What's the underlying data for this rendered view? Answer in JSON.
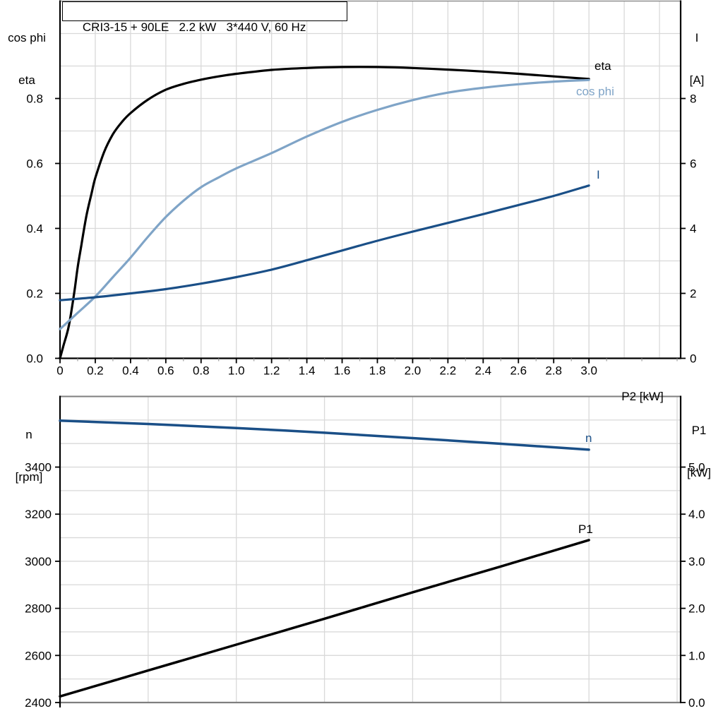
{
  "title_box": {
    "text": "CRI3-15 + 90LE   2.2 kW   3*440 V, 60 Hz",
    "model": "CRI3-15 + 90LE",
    "rated_power": "2.2 kW",
    "supply": "3*440 V, 60 Hz"
  },
  "colors": {
    "black": "#000000",
    "dark_blue": "#1a4f87",
    "light_blue": "#7fa4c7",
    "grid": "#d9d9d9",
    "frame": "#7f7f7f",
    "minor_tick": "#999999",
    "background": "#ffffff"
  },
  "chart_data": [
    {
      "type": "line",
      "title": "CRI3-15 + 90LE 2.2 kW 3*440 V, 60 Hz",
      "xlabel": "P2 [kW]",
      "x_axis": {
        "label": "P2 [kW]",
        "range": [
          0,
          3.52
        ],
        "grid_step": 0.2,
        "minor_step": 0.1,
        "ticks": [
          {
            "v": 0,
            "label": "0"
          },
          {
            "v": 0.2,
            "label": "0.2"
          },
          {
            "v": 0.4,
            "label": "0.4"
          },
          {
            "v": 0.6,
            "label": "0.6"
          },
          {
            "v": 0.8,
            "label": "0.8"
          },
          {
            "v": 1.0,
            "label": "1.0"
          },
          {
            "v": 1.2,
            "label": "1.2"
          },
          {
            "v": 1.4,
            "label": "1.4"
          },
          {
            "v": 1.6,
            "label": "1.6"
          },
          {
            "v": 1.8,
            "label": "1.8"
          },
          {
            "v": 2.0,
            "label": "2.0"
          },
          {
            "v": 2.2,
            "label": "2.2"
          },
          {
            "v": 2.4,
            "label": "2.4"
          },
          {
            "v": 2.6,
            "label": "2.6"
          },
          {
            "v": 2.8,
            "label": "2.8"
          },
          {
            "v": 3.0,
            "label": "3.0"
          }
        ]
      },
      "y_left": {
        "title_lines": [
          "cos phi",
          "eta"
        ],
        "range": [
          0,
          1.1
        ],
        "grid_step": 0.1,
        "ticks": [
          {
            "v": 0.0,
            "label": "0.0"
          },
          {
            "v": 0.2,
            "label": "0.2"
          },
          {
            "v": 0.4,
            "label": "0.4"
          },
          {
            "v": 0.6,
            "label": "0.6"
          },
          {
            "v": 0.8,
            "label": "0.8"
          }
        ]
      },
      "y_right": {
        "title_lines": [
          "I",
          "[A]"
        ],
        "range": [
          0,
          11
        ],
        "ticks": [
          {
            "v": 0,
            "label": "0"
          },
          {
            "v": 2,
            "label": "2"
          },
          {
            "v": 4,
            "label": "4"
          },
          {
            "v": 6,
            "label": "6"
          },
          {
            "v": 8,
            "label": "8"
          }
        ]
      },
      "series": [
        {
          "name": "eta",
          "axis": "left",
          "color": "black",
          "points": [
            [
              0,
              0
            ],
            [
              0.02,
              0.04
            ],
            [
              0.05,
              0.1
            ],
            [
              0.08,
              0.2
            ],
            [
              0.1,
              0.28
            ],
            [
              0.12,
              0.345
            ],
            [
              0.15,
              0.44
            ],
            [
              0.18,
              0.51
            ],
            [
              0.2,
              0.555
            ],
            [
              0.25,
              0.635
            ],
            [
              0.3,
              0.69
            ],
            [
              0.35,
              0.727
            ],
            [
              0.4,
              0.755
            ],
            [
              0.5,
              0.797
            ],
            [
              0.6,
              0.827
            ],
            [
              0.7,
              0.845
            ],
            [
              0.8,
              0.858
            ],
            [
              0.9,
              0.868
            ],
            [
              1.0,
              0.876
            ],
            [
              1.2,
              0.888
            ],
            [
              1.4,
              0.894
            ],
            [
              1.6,
              0.897
            ],
            [
              1.8,
              0.897
            ],
            [
              2.0,
              0.894
            ],
            [
              2.2,
              0.889
            ],
            [
              2.4,
              0.883
            ],
            [
              2.6,
              0.876
            ],
            [
              2.8,
              0.868
            ],
            [
              3.0,
              0.86
            ]
          ]
        },
        {
          "name": "cos phi",
          "axis": "left",
          "color": "light_blue",
          "points": [
            [
              0,
              0.09
            ],
            [
              0.1,
              0.14
            ],
            [
              0.2,
              0.19
            ],
            [
              0.3,
              0.25
            ],
            [
              0.4,
              0.31
            ],
            [
              0.5,
              0.375
            ],
            [
              0.6,
              0.435
            ],
            [
              0.7,
              0.485
            ],
            [
              0.8,
              0.527
            ],
            [
              0.9,
              0.557
            ],
            [
              1.0,
              0.585
            ],
            [
              1.2,
              0.632
            ],
            [
              1.4,
              0.683
            ],
            [
              1.6,
              0.728
            ],
            [
              1.8,
              0.765
            ],
            [
              2.0,
              0.795
            ],
            [
              2.2,
              0.818
            ],
            [
              2.4,
              0.833
            ],
            [
              2.6,
              0.844
            ],
            [
              2.8,
              0.852
            ],
            [
              3.0,
              0.857
            ]
          ]
        },
        {
          "name": "I",
          "axis": "right",
          "color": "dark_blue",
          "points": [
            [
              0,
              1.79
            ],
            [
              0.2,
              1.88
            ],
            [
              0.4,
              2.0
            ],
            [
              0.6,
              2.13
            ],
            [
              0.8,
              2.3
            ],
            [
              1.0,
              2.5
            ],
            [
              1.2,
              2.73
            ],
            [
              1.4,
              3.02
            ],
            [
              1.6,
              3.32
            ],
            [
              1.8,
              3.62
            ],
            [
              2.0,
              3.9
            ],
            [
              2.2,
              4.17
            ],
            [
              2.4,
              4.44
            ],
            [
              2.6,
              4.72
            ],
            [
              2.8,
              5.0
            ],
            [
              3.0,
              5.32
            ]
          ]
        }
      ]
    },
    {
      "type": "line",
      "xlabel": "",
      "x_axis": {
        "label": "",
        "range": [
          0,
          3.52
        ],
        "grid_step": 0.5,
        "minor_step": null,
        "ticks": []
      },
      "y_left": {
        "title_lines": [
          "n",
          "[rpm]"
        ],
        "range": [
          2400,
          3700
        ],
        "grid_step": 100,
        "ticks": [
          {
            "v": 2400,
            "label": "2400"
          },
          {
            "v": 2600,
            "label": "2600"
          },
          {
            "v": 2800,
            "label": "2800"
          },
          {
            "v": 3000,
            "label": "3000"
          },
          {
            "v": 3200,
            "label": "3200"
          },
          {
            "v": 3400,
            "label": "3400"
          }
        ]
      },
      "y_right": {
        "title_lines": [
          "P1",
          "[kW]"
        ],
        "range": [
          0,
          6.5
        ],
        "ticks": [
          {
            "v": 0,
            "label": "0.0"
          },
          {
            "v": 1,
            "label": "1.0"
          },
          {
            "v": 2,
            "label": "2.0"
          },
          {
            "v": 3,
            "label": "3.0"
          },
          {
            "v": 4,
            "label": "4.0"
          },
          {
            "v": 5,
            "label": "5.0"
          }
        ]
      },
      "series": [
        {
          "name": "n",
          "axis": "left",
          "color": "dark_blue",
          "points": [
            [
              0,
              3597
            ],
            [
              0.5,
              3583
            ],
            [
              1.0,
              3566
            ],
            [
              1.5,
              3546
            ],
            [
              2.0,
              3523
            ],
            [
              2.5,
              3499
            ],
            [
              3.0,
              3474
            ]
          ]
        },
        {
          "name": "P1",
          "axis": "right",
          "color": "black",
          "points": [
            [
              0,
              0.13
            ],
            [
              0.5,
              0.68
            ],
            [
              1.0,
              1.23
            ],
            [
              1.5,
              1.78
            ],
            [
              2.0,
              2.34
            ],
            [
              2.5,
              2.89
            ],
            [
              3.0,
              3.45
            ]
          ]
        }
      ]
    }
  ]
}
